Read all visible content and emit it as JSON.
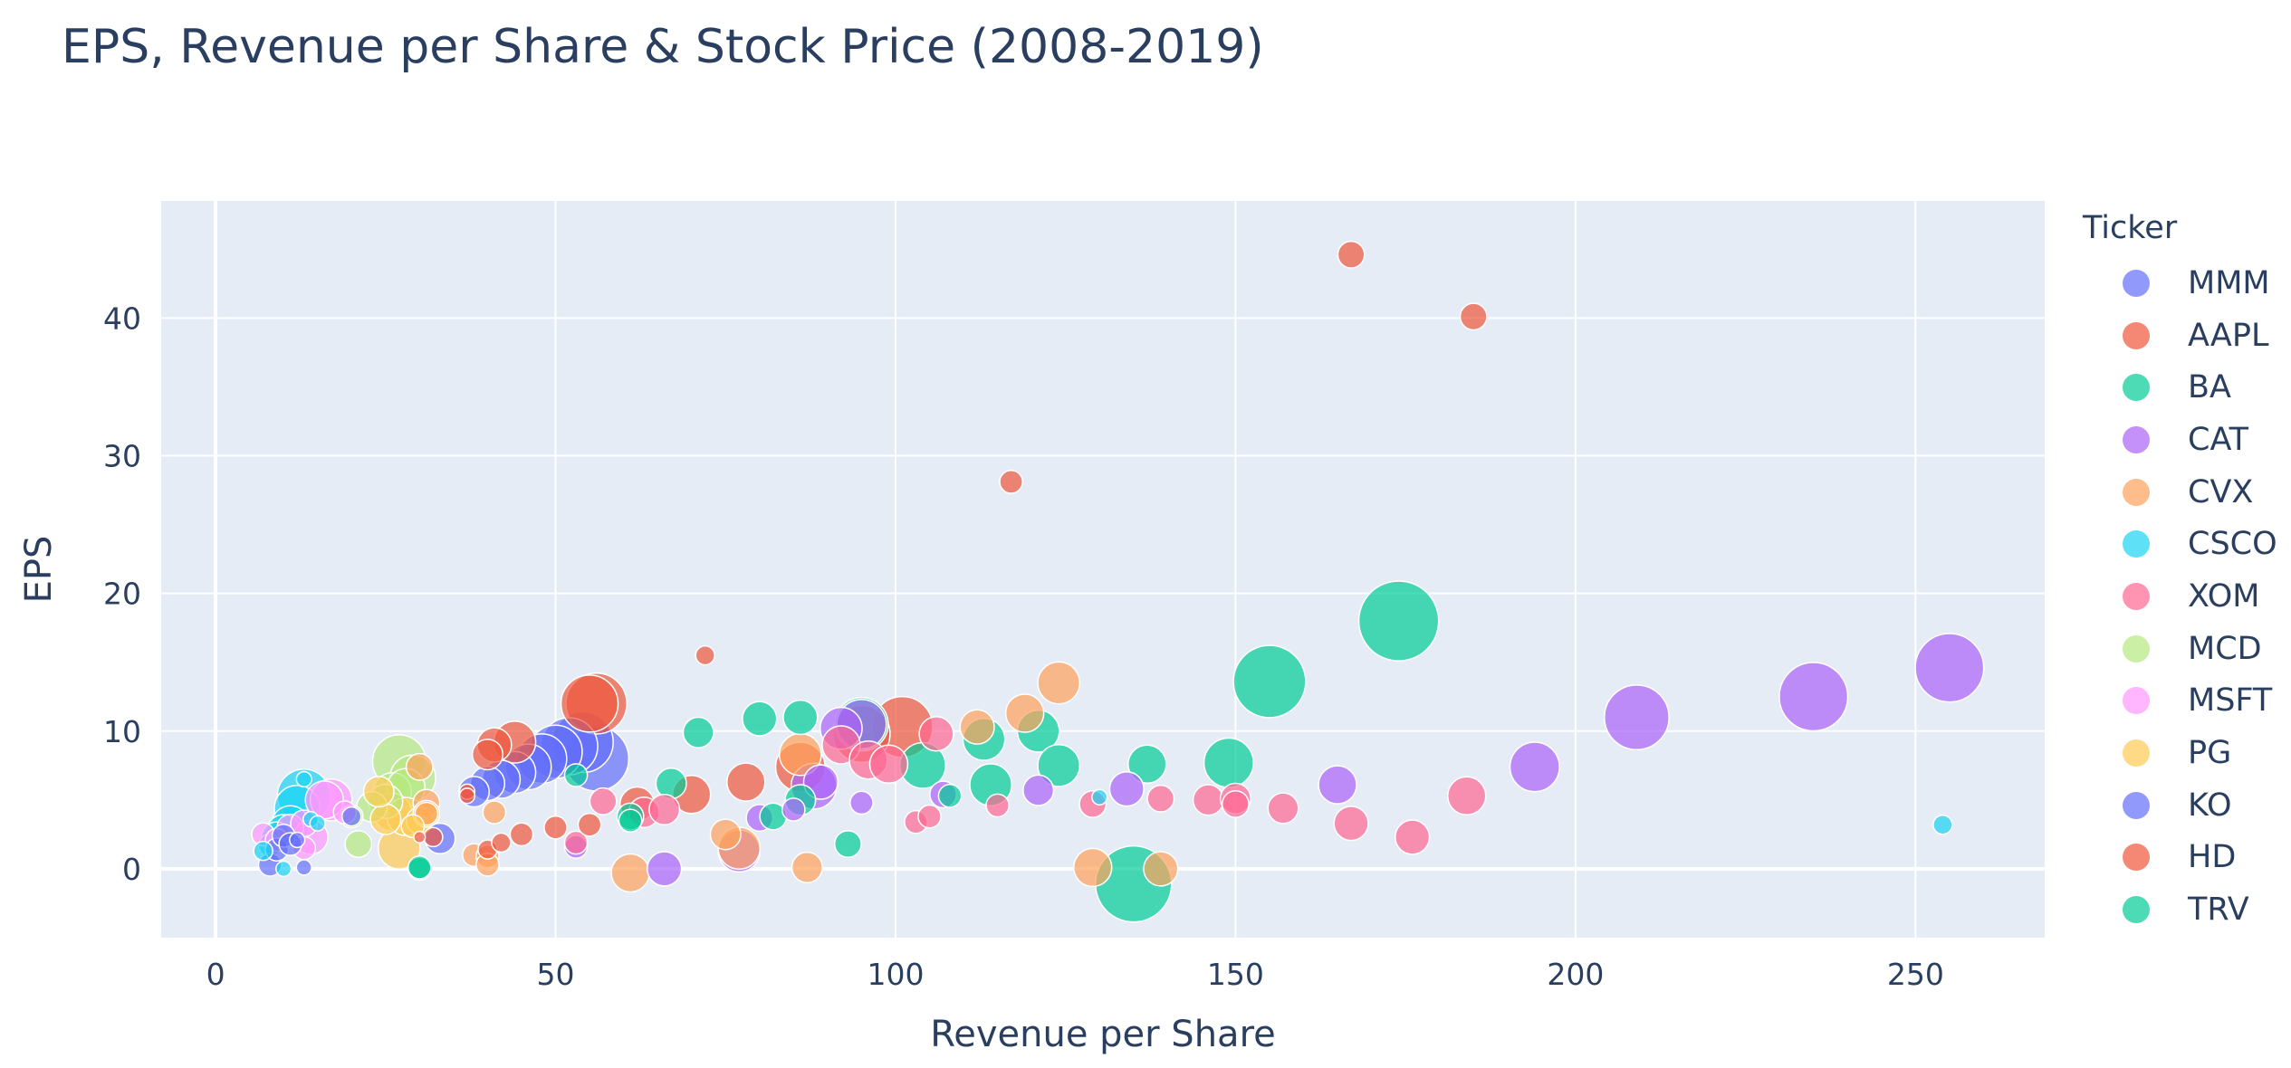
{
  "chart_data": {
    "type": "scatter",
    "title": "EPS, Revenue per Share & Stock Price (2008-2019)",
    "xlabel": "Revenue per Share",
    "ylabel": "EPS",
    "xlim": [
      -8,
      269
    ],
    "ylim": [
      -5,
      48.5
    ],
    "x_ticks": [
      0,
      50,
      100,
      150,
      200,
      250
    ],
    "y_ticks": [
      0,
      10,
      20,
      30,
      40
    ],
    "legend_title": "Ticker",
    "grid": true,
    "legend_position": "right",
    "note": "bubble size encodes stock price",
    "series": [
      {
        "name": "MMM",
        "color": "#636efa",
        "points": [
          [
            38,
            5.6,
            8
          ],
          [
            40,
            6.2,
            9
          ],
          [
            42,
            6.5,
            10
          ],
          [
            44,
            7.0,
            11
          ],
          [
            46,
            7.4,
            12
          ],
          [
            48,
            8.0,
            13
          ],
          [
            50,
            8.5,
            14
          ],
          [
            52,
            8.9,
            15
          ],
          [
            54,
            9.2,
            16
          ],
          [
            56,
            8.0,
            17
          ],
          [
            33,
            2.2,
            8
          ]
        ]
      },
      {
        "name": "AAPL",
        "color": "#EF553B",
        "points": [
          [
            30,
            2.3,
            3
          ],
          [
            37,
            5.6,
            4
          ],
          [
            40,
            8.3,
            8
          ],
          [
            41,
            9.0,
            9
          ],
          [
            44,
            9.2,
            11
          ],
          [
            50,
            3.0,
            6
          ],
          [
            55,
            12.0,
            15
          ],
          [
            56,
            12.0,
            16
          ],
          [
            62,
            4.7,
            9
          ],
          [
            70,
            5.4,
            10
          ],
          [
            72,
            15.5,
            5
          ],
          [
            117,
            28.1,
            6
          ],
          [
            167,
            44.6,
            7
          ],
          [
            185,
            40.1,
            7
          ],
          [
            78,
            6.3,
            10
          ],
          [
            86,
            7.4,
            13
          ],
          [
            95,
            9.8,
            15
          ],
          [
            101,
            10.3,
            16
          ]
        ]
      },
      {
        "name": "BA",
        "color": "#00cc96",
        "points": [
          [
            53,
            6.8,
            6
          ],
          [
            61,
            3.5,
            6
          ],
          [
            67,
            6.2,
            8
          ],
          [
            71,
            9.9,
            8
          ],
          [
            80,
            10.9,
            9
          ],
          [
            86,
            11.0,
            9
          ],
          [
            95,
            10.5,
            14
          ],
          [
            104,
            7.5,
            12
          ],
          [
            113,
            9.4,
            11
          ],
          [
            114,
            6.1,
            11
          ],
          [
            121,
            10.0,
            11
          ],
          [
            124,
            7.5,
            11
          ],
          [
            137,
            7.6,
            10
          ],
          [
            149,
            7.7,
            13
          ],
          [
            155,
            13.6,
            19
          ],
          [
            174,
            18.0,
            21
          ],
          [
            135,
            -1.1,
            20
          ]
        ]
      },
      {
        "name": "CAT",
        "color": "#ab63fa",
        "points": [
          [
            53,
            1.6,
            6
          ],
          [
            66,
            0.0,
            9
          ],
          [
            77,
            1.3,
            11
          ],
          [
            80,
            3.7,
            7
          ],
          [
            85,
            4.3,
            6
          ],
          [
            88,
            6.0,
            12
          ],
          [
            89,
            6.3,
            9
          ],
          [
            92,
            10.2,
            11
          ],
          [
            95,
            10.5,
            13
          ],
          [
            95,
            4.8,
            6
          ],
          [
            107,
            5.4,
            7
          ],
          [
            121,
            5.7,
            8
          ],
          [
            134,
            5.8,
            9
          ],
          [
            165,
            6.1,
            10
          ],
          [
            194,
            7.4,
            13
          ],
          [
            209,
            11.0,
            17
          ],
          [
            235,
            12.5,
            18
          ],
          [
            255,
            14.6,
            18
          ]
        ]
      },
      {
        "name": "CVX",
        "color": "#FFA15A",
        "points": [
          [
            30,
            7.4,
            7
          ],
          [
            31,
            4.0,
            6
          ],
          [
            31,
            4.8,
            7
          ],
          [
            38,
            1.0,
            6
          ],
          [
            40,
            0.9,
            6
          ],
          [
            41,
            4.1,
            6
          ],
          [
            40,
            0.3,
            6
          ],
          [
            61,
            -0.3,
            10
          ],
          [
            75,
            2.5,
            8
          ],
          [
            77,
            1.5,
            11
          ],
          [
            86,
            8.3,
            11
          ],
          [
            87,
            0.1,
            8
          ],
          [
            112,
            10.3,
            9
          ],
          [
            119,
            11.3,
            10
          ],
          [
            124,
            13.5,
            11
          ],
          [
            129,
            0.1,
            10
          ],
          [
            139,
            0.0,
            9
          ]
        ]
      },
      {
        "name": "CSCO",
        "color": "#19d3f3",
        "points": [
          [
            7,
            1.3,
            5
          ],
          [
            8,
            1.7,
            6
          ],
          [
            9,
            2.3,
            8
          ],
          [
            10,
            2.7,
            9
          ],
          [
            11,
            3.2,
            10
          ],
          [
            12,
            4.4,
            12
          ],
          [
            13,
            5.3,
            14
          ],
          [
            14,
            3.6,
            4
          ],
          [
            15,
            3.3,
            4
          ],
          [
            10,
            0.0,
            4
          ],
          [
            13,
            6.5,
            4
          ],
          [
            130,
            5.2,
            4
          ],
          [
            254,
            3.2,
            5
          ]
        ]
      },
      {
        "name": "XOM",
        "color": "#FF6692",
        "points": [
          [
            53,
            1.9,
            6
          ],
          [
            57,
            4.9,
            7
          ],
          [
            63,
            4.1,
            8
          ],
          [
            66,
            4.3,
            8
          ],
          [
            92,
            9.0,
            10
          ],
          [
            96,
            7.9,
            10
          ],
          [
            99,
            7.6,
            10
          ],
          [
            103,
            3.4,
            6
          ],
          [
            105,
            3.8,
            6
          ],
          [
            106,
            9.8,
            9
          ],
          [
            115,
            4.6,
            6
          ],
          [
            129,
            4.7,
            7
          ],
          [
            139,
            5.1,
            7
          ],
          [
            146,
            5.0,
            8
          ],
          [
            150,
            5.1,
            8
          ],
          [
            150,
            4.7,
            7
          ],
          [
            157,
            4.4,
            8
          ],
          [
            167,
            3.3,
            9
          ],
          [
            176,
            2.3,
            9
          ],
          [
            184,
            5.3,
            10
          ]
        ]
      },
      {
        "name": "MCD",
        "color": "#B6E880",
        "points": [
          [
            20,
            3.8,
            6
          ],
          [
            21,
            1.8,
            7
          ],
          [
            23,
            4.5,
            8
          ],
          [
            25,
            4.9,
            9
          ],
          [
            26,
            5.6,
            10
          ],
          [
            27,
            7.8,
            14
          ],
          [
            29,
            6.6,
            12
          ],
          [
            28,
            5.9,
            10
          ]
        ]
      },
      {
        "name": "MSFT",
        "color": "#FF97FF",
        "points": [
          [
            7,
            2.5,
            6
          ],
          [
            9,
            2.1,
            6
          ],
          [
            11,
            3.0,
            7
          ],
          [
            13,
            3.3,
            7
          ],
          [
            14,
            2.3,
            9
          ],
          [
            16,
            5.0,
            10
          ],
          [
            17,
            5.0,
            11
          ],
          [
            19,
            4.1,
            6
          ],
          [
            13,
            1.5,
            6
          ]
        ]
      },
      {
        "name": "PG",
        "color": "#FECB52",
        "points": [
          [
            25,
            3.6,
            8
          ],
          [
            26,
            4.1,
            10
          ],
          [
            27,
            1.5,
            11
          ],
          [
            28,
            3.8,
            10
          ],
          [
            24,
            5.6,
            8
          ],
          [
            29,
            3.1,
            6
          ],
          [
            30,
            3.5,
            7
          ],
          [
            31,
            4.0,
            7
          ]
        ]
      },
      {
        "name": "KO",
        "color": "#636efa",
        "points": [
          [
            8,
            0.3,
            6
          ],
          [
            9,
            1.4,
            6
          ],
          [
            10,
            2.4,
            6
          ],
          [
            11,
            1.8,
            6
          ],
          [
            12,
            2.1,
            4
          ],
          [
            13,
            0.1,
            4
          ],
          [
            20,
            3.8,
            5
          ]
        ]
      },
      {
        "name": "HD",
        "color": "#EF553B",
        "points": [
          [
            32,
            2.3,
            5
          ],
          [
            37,
            5.3,
            4
          ],
          [
            40,
            1.4,
            5
          ],
          [
            42,
            1.9,
            5
          ],
          [
            45,
            2.5,
            6
          ],
          [
            55,
            3.2,
            6
          ]
        ]
      },
      {
        "name": "TRV",
        "color": "#00cc96",
        "points": [
          [
            30,
            0.0,
            6
          ],
          [
            30,
            0.1,
            6
          ],
          [
            61,
            3.8,
            7
          ],
          [
            82,
            3.8,
            7
          ],
          [
            86,
            5.0,
            8
          ],
          [
            93,
            1.8,
            7
          ],
          [
            108,
            5.3,
            6
          ]
        ]
      }
    ]
  }
}
